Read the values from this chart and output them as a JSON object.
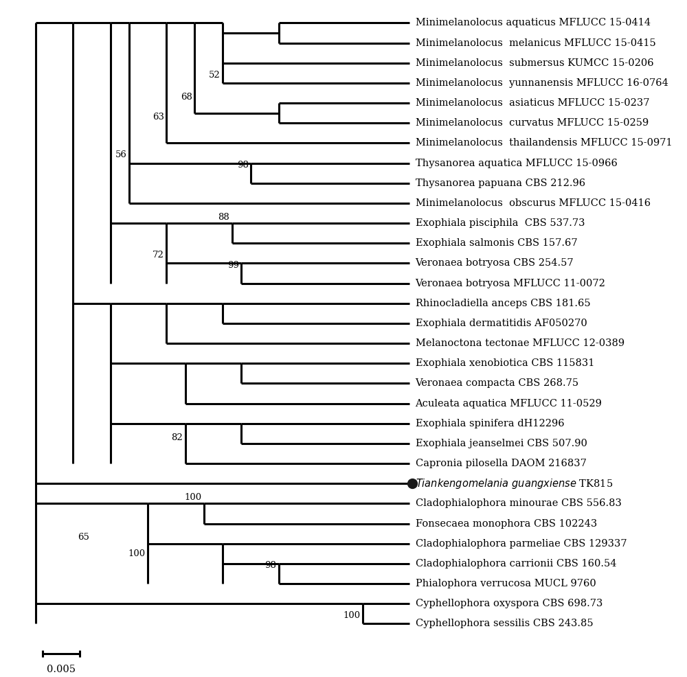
{
  "background_color": "#ffffff",
  "line_color": "#000000",
  "line_width": 2.2,
  "font_size": 10.5,
  "scale_bar_label": "0.005",
  "taxa": [
    "Minimelanolocus aquaticus MFLUCC 15-0414",
    "Minimelanolocus  melanicus MFLUCC 15-0415",
    "Minimelanolocus  submersus KUMCC 15-0206",
    "Minimelanolocus  yunnanensis MFLUCC 16-0764",
    "Minimelanolocus  asiaticus MFLUCC 15-0237",
    "Minimelanolocus  curvatus MFLUCC 15-0259",
    "Minimelanolocus  thailandensis MFLUCC 15-0971",
    "Thysanorea aquatica MFLUCC 15-0966",
    "Thysanorea papuana CBS 212.96",
    "Minimelanolocus  obscurus MFLUCC 15-0416",
    "Exophiala pisciphila  CBS 537.73",
    "Exophiala salmonis CBS 157.67",
    "Veronaea botryosa CBS 254.57",
    "Veronaea botryosa MFLUCC 11-0072",
    "Rhinocladiella anceps CBS 181.65",
    "Exophiala dermatitidis AF050270",
    "Melanoctona tectonae MFLUCC 12-0389",
    "Exophiala xenobiotica CBS 115831",
    "Veronaea compacta CBS 268.75",
    "Aculeata aquatica MFLUCC 11-0529",
    "Exophiala spinifera dH12296",
    "Exophiala jeanselmei CBS 507.90",
    "Capronia pilosella DAOM 216837",
    "Tiankengomelania guangxiense TK815",
    "Cladophialophora minourae CBS 556.83",
    "Fonsecaea monophora CBS 102243",
    "Cladophialophora parmeliae CBS 129337",
    "Cladophialophora carrionii CBS 160.54",
    "Phialophora verrucosa MUCL 9760",
    "Cyphellophora oxyspora CBS 698.73",
    "Cyphellophora sessilis CBS 243.85"
  ]
}
